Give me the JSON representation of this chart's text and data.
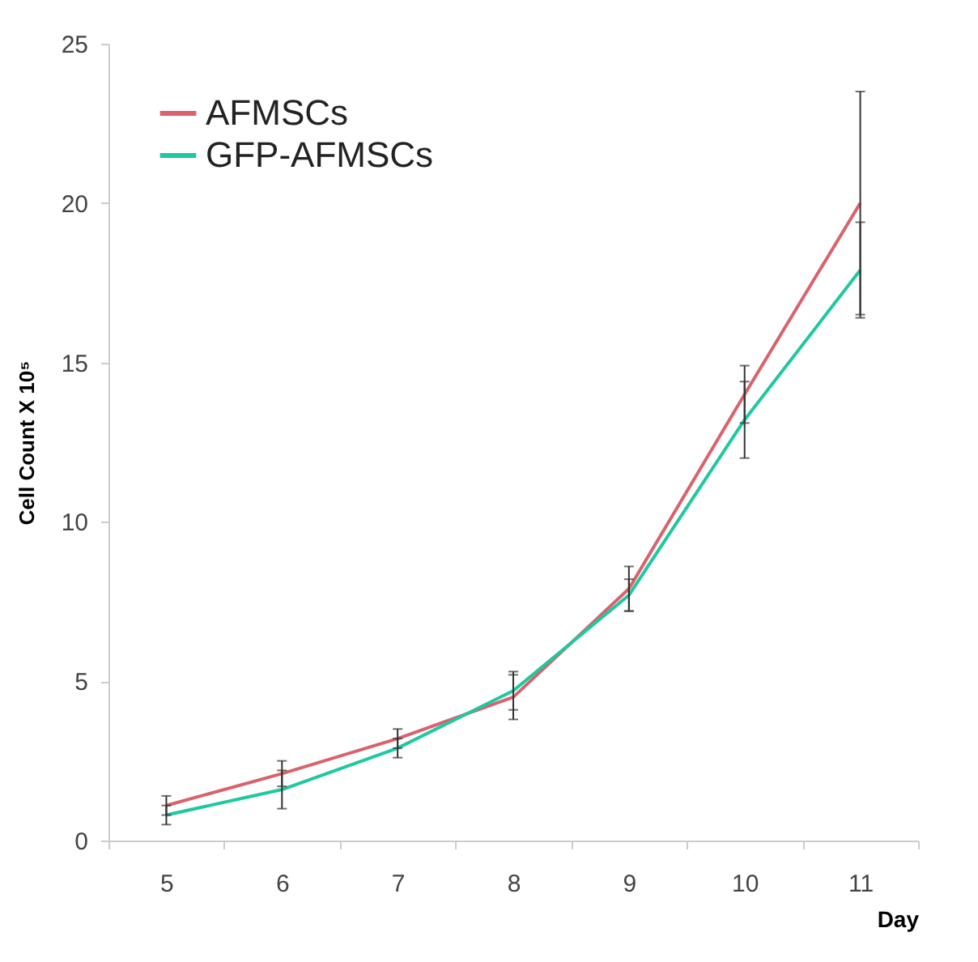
{
  "chart_data": {
    "type": "line",
    "xlabel": "Day",
    "ylabel": "Cell Count X 10⁵",
    "categories": [
      "5",
      "6",
      "7",
      "8",
      "9",
      "10",
      "11"
    ],
    "series": [
      {
        "name": "AFMSCs",
        "color": "#d9626b",
        "values": [
          1.1,
          2.1,
          3.2,
          4.5,
          7.9,
          14.0,
          20.0
        ],
        "errors": [
          0.3,
          0.4,
          0.3,
          0.7,
          0.7,
          0.9,
          3.5
        ]
      },
      {
        "name": "GFP-AFMSCs",
        "color": "#1ec8a0",
        "values": [
          0.8,
          1.6,
          2.9,
          4.7,
          7.7,
          13.2,
          17.9
        ],
        "errors": [
          0.3,
          0.6,
          0.3,
          0.6,
          0.5,
          1.2,
          1.5
        ]
      }
    ],
    "ylim": [
      0,
      25
    ],
    "yticks": [
      0,
      5,
      10,
      15,
      20,
      25
    ],
    "grid": false,
    "legend": "top left",
    "marker": "none",
    "line_style": "solid"
  }
}
